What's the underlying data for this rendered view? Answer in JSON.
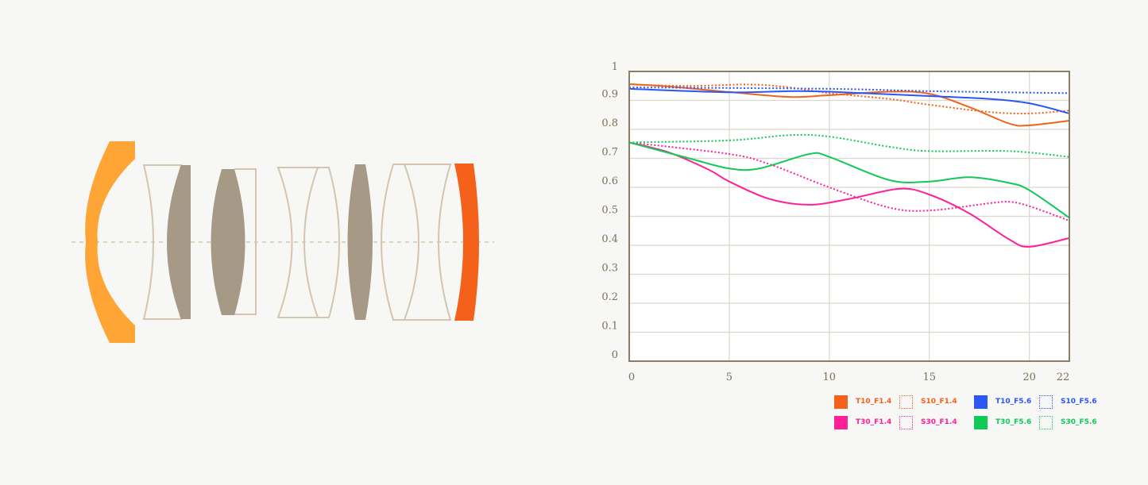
{
  "colors": {
    "background": "#f7f7f6",
    "axis": "#8a7f63",
    "grid": "#dcd6cc",
    "lens_outline": "#d3c5ae",
    "lens_fill": "#a69985",
    "front_element": "#ffa535",
    "rear_element": "#f4611a"
  },
  "chart_data": {
    "type": "line",
    "xlim": [
      0,
      22
    ],
    "ylim": [
      0,
      1
    ],
    "x_ticks": [
      "0",
      "5",
      "10",
      "15",
      "20",
      "22"
    ],
    "y_ticks": [
      "0",
      "0.1",
      "0.2",
      "0.3",
      "0.4",
      "0.5",
      "0.6",
      "0.7",
      "0.8",
      "0.9",
      "1"
    ],
    "grid": true,
    "legend_position": "bottom-right",
    "series": [
      {
        "name": "T10_F1.4",
        "color": "#f4611a",
        "style": "solid",
        "x": [
          0,
          2,
          5,
          8,
          10,
          13,
          15,
          17,
          19,
          20,
          22
        ],
        "y": [
          0.956,
          0.948,
          0.929,
          0.912,
          0.918,
          0.93,
          0.923,
          0.877,
          0.82,
          0.814,
          0.83
        ]
      },
      {
        "name": "S10_F1.4",
        "color": "#f4611a",
        "style": "dotted",
        "x": [
          0,
          3,
          6,
          8,
          10,
          13,
          15,
          18,
          20,
          22
        ],
        "y": [
          0.955,
          0.95,
          0.955,
          0.945,
          0.925,
          0.905,
          0.885,
          0.86,
          0.855,
          0.865
        ]
      },
      {
        "name": "T10_F5.6",
        "color": "#2a57f5",
        "style": "solid",
        "x": [
          0,
          5,
          8,
          10,
          15,
          18,
          20,
          22
        ],
        "y": [
          0.94,
          0.928,
          0.932,
          0.93,
          0.915,
          0.905,
          0.89,
          0.855
        ]
      },
      {
        "name": "S10_F5.6",
        "color": "#2a57f5",
        "style": "dotted",
        "x": [
          0,
          10,
          15,
          22
        ],
        "y": [
          0.945,
          0.94,
          0.932,
          0.925
        ]
      },
      {
        "name": "T30_F1.4",
        "color": "#ff1f96",
        "style": "solid",
        "x": [
          0,
          2,
          4,
          5,
          7,
          9,
          11,
          13.5,
          15,
          17,
          19,
          20,
          22
        ],
        "y": [
          0.755,
          0.72,
          0.66,
          0.62,
          0.56,
          0.54,
          0.56,
          0.595,
          0.575,
          0.51,
          0.42,
          0.395,
          0.425
        ]
      },
      {
        "name": "S30_F1.4",
        "color": "#ff1f96",
        "style": "dotted",
        "x": [
          0,
          5,
          7,
          10,
          13,
          15,
          18,
          19,
          20,
          22
        ],
        "y": [
          0.755,
          0.715,
          0.68,
          0.6,
          0.53,
          0.52,
          0.545,
          0.55,
          0.535,
          0.485
        ]
      },
      {
        "name": "T30_F5.6",
        "color": "#0fca55",
        "style": "solid",
        "x": [
          0,
          3,
          5,
          6.5,
          9,
          10,
          13,
          15,
          17,
          19,
          20,
          22
        ],
        "y": [
          0.755,
          0.7,
          0.665,
          0.665,
          0.715,
          0.705,
          0.625,
          0.62,
          0.635,
          0.615,
          0.59,
          0.495
        ]
      },
      {
        "name": "S30_F5.6",
        "color": "#0fca55",
        "style": "dotted",
        "x": [
          0,
          5,
          8,
          10,
          13,
          15,
          19,
          22
        ],
        "y": [
          0.755,
          0.762,
          0.78,
          0.775,
          0.74,
          0.725,
          0.725,
          0.705
        ]
      }
    ]
  }
}
